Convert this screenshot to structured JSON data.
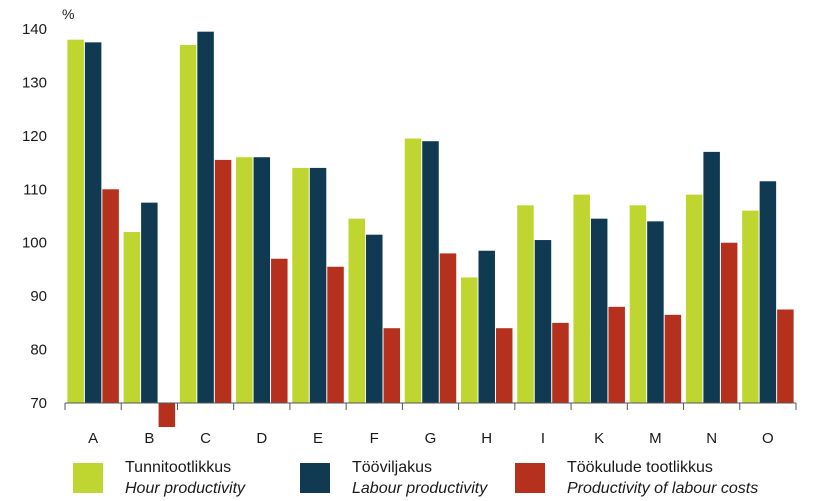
{
  "chart_data": {
    "type": "bar",
    "ylabel": "%",
    "ylim": [
      70,
      140
    ],
    "yticks": [
      70,
      80,
      90,
      100,
      110,
      120,
      130,
      140
    ],
    "categories": [
      "A",
      "B",
      "C",
      "D",
      "E",
      "F",
      "G",
      "H",
      "I",
      "K",
      "M",
      "N",
      "O"
    ],
    "series": [
      {
        "name": "Tunnitootlikkus",
        "name_en": "Hour productivity",
        "color": "#bed62f",
        "values": [
          138,
          102,
          137,
          116,
          114,
          104.5,
          119.5,
          93.5,
          107,
          109,
          107,
          109,
          106
        ]
      },
      {
        "name": "Tööviljakus",
        "name_en": "Labour productivity",
        "color": "#0f3a52",
        "values": [
          137.5,
          107.5,
          139.5,
          116,
          114,
          101.5,
          119,
          98.5,
          100.5,
          104.5,
          104,
          117,
          111.5
        ]
      },
      {
        "name": "Töökulude tootlikkus",
        "name_en": "Productivity of labour costs",
        "color": "#b5311e",
        "values": [
          110,
          65.5,
          115.5,
          97,
          95.5,
          84,
          98,
          84,
          85,
          88,
          86.5,
          100,
          87.5
        ]
      }
    ],
    "legend": "bottom",
    "grid": false
  }
}
